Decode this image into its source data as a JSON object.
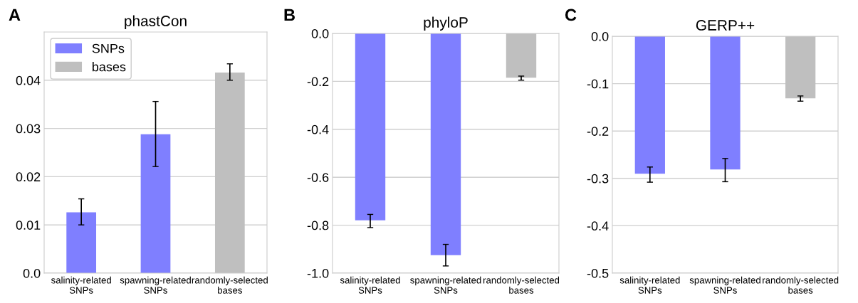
{
  "chart_data": [
    {
      "type": "bar",
      "title": "phastCon",
      "annotations": [
        "A"
      ],
      "categories": [
        "salinity-related\nSNPs",
        "spawning-related\nSNPs",
        "randomly-selected\nbases"
      ],
      "series": [
        {
          "name": "SNPs",
          "color": "#7f7fff",
          "values": [
            0.0126,
            0.0288,
            null
          ],
          "errors": [
            [
              0.01,
              0.0154
            ],
            [
              0.0221,
              0.0356
            ],
            null
          ]
        },
        {
          "name": "bases",
          "color": "#bfbfbf",
          "values": [
            null,
            null,
            0.0416
          ],
          "errors": [
            null,
            null,
            [
              0.04,
              0.0434
            ]
          ]
        }
      ],
      "ylim": [
        0,
        0.05
      ],
      "yticks": [
        {
          "value": 0,
          "label": "0.0"
        },
        0.01,
        0.02,
        0.03,
        0.04
      ],
      "grid": "y",
      "legend": "top left"
    },
    {
      "type": "bar",
      "title": "phyloP",
      "annotations": [
        "B"
      ],
      "categories": [
        "salinity-related\nSNPs",
        "spawning-related\nSNPs",
        "randomly-selected\nbases"
      ],
      "series": [
        {
          "color": "#7f7fff",
          "values": [
            -0.78,
            -0.925,
            null
          ],
          "errors": [
            [
              -0.81,
              -0.755
            ],
            [
              -0.97,
              -0.88
            ],
            null
          ]
        },
        {
          "color": "#bfbfbf",
          "values": [
            null,
            null,
            -0.185
          ],
          "errors": [
            null,
            null,
            [
              -0.195,
              -0.178
            ]
          ]
        }
      ],
      "ylim": [
        -1.0,
        0
      ],
      "yticks": [
        {
          "value": -1.0,
          "label": "-1.0"
        },
        {
          "value": -0.8,
          "label": "-0.8"
        },
        {
          "value": -0.6,
          "label": "-0.6"
        },
        {
          "value": -0.4,
          "label": "-0.4"
        },
        {
          "value": -0.2,
          "label": "-0.2"
        },
        {
          "value": 0,
          "label": "0.0"
        }
      ],
      "grid": "y"
    },
    {
      "type": "bar",
      "title": "GERP++",
      "annotations": [
        "C"
      ],
      "categories": [
        "salinity-related\nSNPs",
        "spawning-related\nSNPs",
        "randomly-selected\nbases"
      ],
      "series": [
        {
          "color": "#7f7fff",
          "values": [
            -0.29,
            -0.281,
            null
          ],
          "errors": [
            [
              -0.308,
              -0.276
            ],
            [
              -0.307,
              -0.258
            ],
            null
          ]
        },
        {
          "color": "#bfbfbf",
          "values": [
            null,
            null,
            -0.131
          ],
          "errors": [
            null,
            null,
            [
              -0.137,
              -0.126
            ]
          ]
        }
      ],
      "ylim": [
        -0.5,
        0
      ],
      "yticks": [
        {
          "value": -0.5,
          "label": "-0.5"
        },
        {
          "value": -0.4,
          "label": "-0.4"
        },
        {
          "value": -0.3,
          "label": "-0.3"
        },
        {
          "value": -0.2,
          "label": "-0.2"
        },
        {
          "value": -0.1,
          "label": "-0.1"
        },
        {
          "value": 0,
          "label": "0.0"
        }
      ],
      "grid": "y"
    }
  ]
}
